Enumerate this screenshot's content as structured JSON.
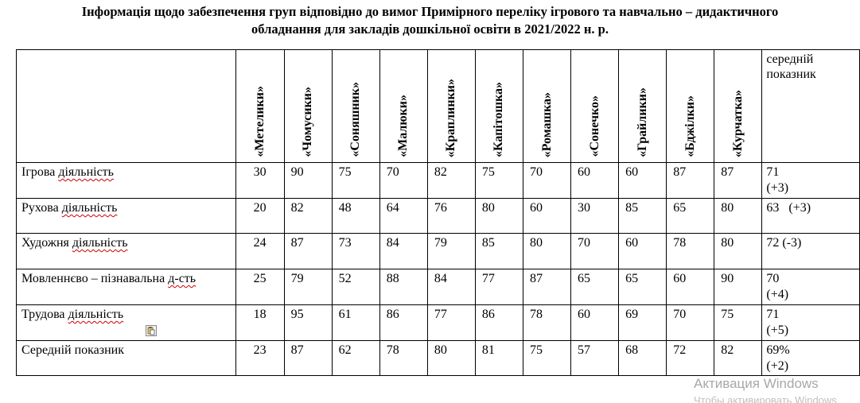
{
  "title": {
    "line1": "Інформація щодо забезпечення груп відповідно до вимог Примірного переліку ігрового та навчально – дидактичного",
    "line2": "обладнання для закладів дошкільної освіти в 2021/2022 н. р."
  },
  "table": {
    "groups": [
      "«Метелики»",
      "«Чомусики»",
      "«Соняшник»",
      "«Малюки»",
      "«Краплинки»",
      "«Капітошка»",
      "«Ромашка»",
      "«Сонечко»",
      "«Грайлики»",
      "«Бджілки»",
      "«Курчатка»"
    ],
    "avg_header": [
      "середній",
      "показник"
    ],
    "rows": [
      {
        "label_main": "Ігрова",
        "label_squig": "діяльність",
        "values": [
          "30",
          "90",
          "75",
          "70",
          "82",
          "75",
          "70",
          "60",
          "60",
          "87",
          "87"
        ],
        "avg_line1": "71",
        "avg_line2": "(+3)"
      },
      {
        "label_main": "Рухова",
        "label_squig": "діяльність",
        "values": [
          "20",
          "82",
          "48",
          "64",
          "76",
          "80",
          "60",
          "30",
          "85",
          "65",
          "80"
        ],
        "avg_line1": "63   (+3)",
        "avg_line2": ""
      },
      {
        "label_main": "Художня",
        "label_squig": "діяльність",
        "values": [
          "24",
          "87",
          "73",
          "84",
          "79",
          "85",
          "80",
          "70",
          "60",
          "78",
          "80"
        ],
        "avg_line1": "72 (-3)",
        "avg_line2": ""
      },
      {
        "label_main": "Мовленнєво – пізнавальна",
        "label_squig": "д-сть",
        "values": [
          "25",
          "79",
          "52",
          "88",
          "84",
          "77",
          "87",
          "65",
          "65",
          "60",
          "90"
        ],
        "avg_line1": "70",
        "avg_line2": "(+4)"
      },
      {
        "label_main": "Трудова",
        "label_squig": "діяльність",
        "values": [
          "18",
          "95",
          "61",
          "86",
          "77",
          "86",
          "78",
          "60",
          "69",
          "70",
          "75"
        ],
        "avg_line1": "71",
        "avg_line2": "(+5)"
      },
      {
        "label_main": "Середній показник",
        "label_squig": "",
        "values": [
          "23",
          "87",
          "62",
          "78",
          "80",
          "81",
          "75",
          "57",
          "68",
          "72",
          "82"
        ],
        "avg_line1": "69%",
        "avg_line2": "(+2)"
      }
    ],
    "paste_icon": "clipboard-paste-icon"
  },
  "watermark": {
    "line1": "Активация Windows",
    "line2": "Чтобы активировать Windows"
  }
}
